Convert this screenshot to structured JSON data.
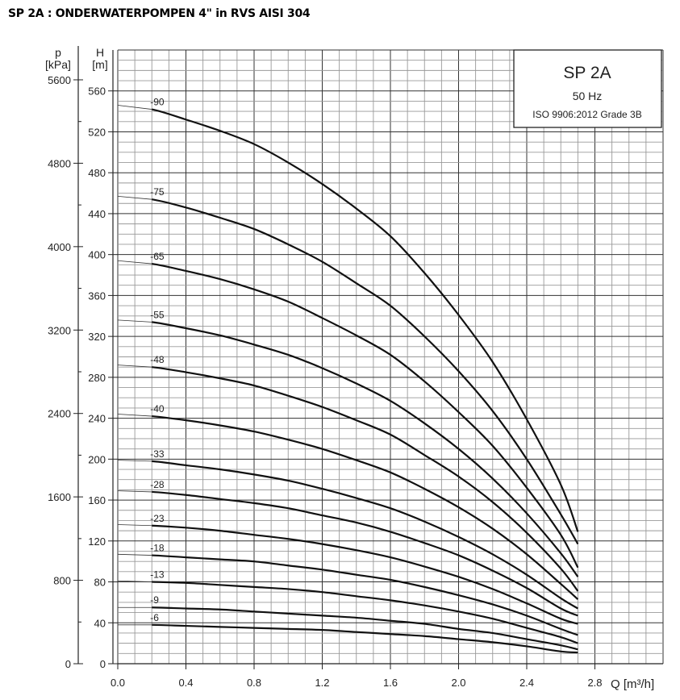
{
  "page_title": "SP 2A : ONDERWATERPOMPEN 4\" in RVS AISI 304",
  "legend_box": {
    "model": "SP 2A",
    "frequency": "50 Hz",
    "standard": "ISO 9906:2012 Grade 3B"
  },
  "chart_data": {
    "type": "line",
    "title": "SP 2A",
    "xlabel": "Q [m³/h]",
    "ylabel": "H [m]",
    "ylabel_secondary": "p [kPa]",
    "xlim": [
      0,
      3.2
    ],
    "ylim": [
      0,
      600
    ],
    "x_ticks": [
      "0.0",
      "0.4",
      "0.8",
      "1.2",
      "1.6",
      "2.0",
      "2.4",
      "2.8"
    ],
    "y_ticks": [
      "0",
      "40",
      "80",
      "120",
      "160",
      "200",
      "240",
      "280",
      "320",
      "360",
      "400",
      "440",
      "480",
      "520",
      "560"
    ],
    "y2_ticks": [
      "0",
      "800",
      "1600",
      "2400",
      "3200",
      "4000",
      "4800",
      "5600"
    ],
    "grid": true,
    "x": [
      0,
      0.2,
      0.4,
      0.6,
      0.8,
      1.0,
      1.2,
      1.4,
      1.6,
      1.8,
      2.0,
      2.2,
      2.4,
      2.6,
      2.7
    ],
    "series": [
      {
        "name": "-90",
        "values": [
          546,
          542,
          532,
          521,
          508,
          490,
          469,
          445,
          418,
          382,
          341,
          295,
          239,
          175,
          129
        ]
      },
      {
        "name": "-75",
        "values": [
          457,
          454,
          446,
          436,
          425,
          410,
          393,
          372,
          350,
          320,
          286,
          247,
          200,
          146,
          117
        ]
      },
      {
        "name": "-65",
        "values": [
          394,
          391,
          384,
          376,
          366,
          354,
          338,
          321,
          302,
          276,
          246,
          213,
          172,
          126,
          94
        ]
      },
      {
        "name": "-55",
        "values": [
          336,
          334,
          328,
          321,
          312,
          302,
          289,
          274,
          257,
          235,
          210,
          181,
          147,
          108,
          85
        ]
      },
      {
        "name": "-48",
        "values": [
          292,
          290,
          285,
          279,
          272,
          262,
          251,
          238,
          224,
          204,
          183,
          158,
          128,
          93,
          71
        ]
      },
      {
        "name": "-40",
        "values": [
          244,
          242,
          238,
          233,
          227,
          219,
          210,
          199,
          187,
          171,
          153,
          132,
          107,
          78,
          63
        ]
      },
      {
        "name": "-33",
        "values": [
          199,
          198,
          194,
          190,
          185,
          179,
          171,
          162,
          152,
          139,
          124,
          107,
          87,
          64,
          54
        ]
      },
      {
        "name": "-28",
        "values": [
          169,
          168,
          165,
          161,
          157,
          152,
          145,
          138,
          129,
          118,
          106,
          91,
          74,
          54,
          47
        ]
      },
      {
        "name": "-23",
        "values": [
          136,
          135,
          133,
          130,
          126,
          122,
          117,
          111,
          104,
          95,
          85,
          73,
          59,
          44,
          39
        ]
      },
      {
        "name": "-18",
        "values": [
          107,
          106,
          104,
          102,
          100,
          96,
          92,
          87,
          82,
          75,
          67,
          58,
          47,
          34,
          28
        ]
      },
      {
        "name": "-13",
        "values": [
          81,
          80,
          79,
          77,
          75,
          73,
          70,
          66,
          62,
          57,
          51,
          44,
          35,
          26,
          20
        ]
      },
      {
        "name": "-9",
        "values": [
          55,
          55,
          54,
          53,
          51,
          49,
          47,
          45,
          42,
          39,
          34,
          30,
          24,
          18,
          14
        ]
      },
      {
        "name": "-6",
        "values": [
          38,
          38,
          37,
          36,
          35,
          34,
          33,
          31,
          29,
          27,
          24,
          21,
          17,
          12,
          11
        ]
      }
    ]
  }
}
